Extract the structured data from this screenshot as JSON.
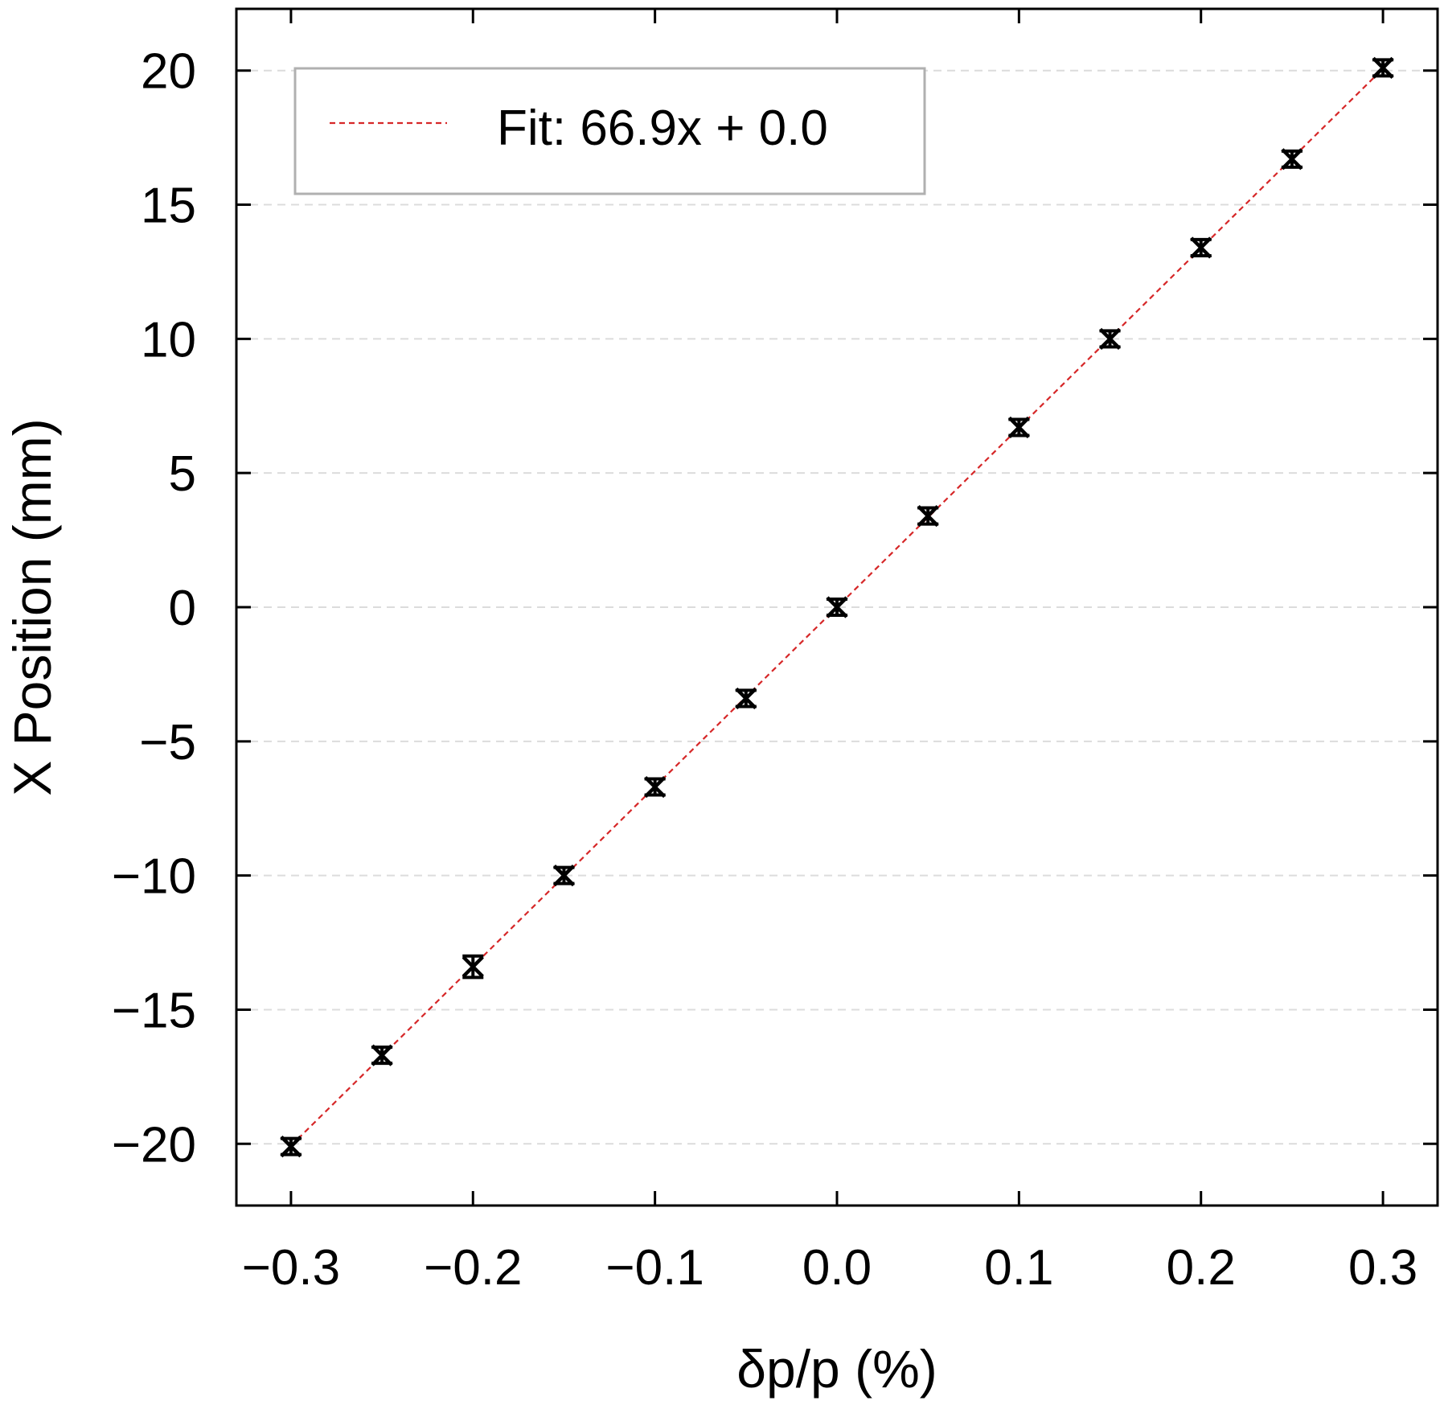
{
  "chart_data": {
    "type": "scatter",
    "xlabel": "δp/p (%)",
    "ylabel": "X Position (mm)",
    "xlim": [
      -0.33,
      0.33
    ],
    "ylim": [
      -22.3,
      22.3
    ],
    "x_ticks": [
      -0.3,
      -0.2,
      -0.1,
      0.0,
      0.1,
      0.2,
      0.3
    ],
    "x_tick_labels": [
      "−0.3",
      "−0.2",
      "−0.1",
      "0.0",
      "0.1",
      "0.2",
      "0.3"
    ],
    "y_ticks": [
      -20,
      -15,
      -10,
      -5,
      0,
      5,
      10,
      15,
      20
    ],
    "y_tick_labels": [
      "−20",
      "−15",
      "−10",
      "−5",
      "0",
      "5",
      "10",
      "15",
      "20"
    ],
    "grid": "horizontal-dashed",
    "legend_position": "top-left",
    "series": [
      {
        "kind": "points",
        "marker": "x",
        "error_bars": true,
        "color": "#000000",
        "x": [
          -0.3,
          -0.25,
          -0.2,
          -0.15,
          -0.1,
          -0.05,
          0.0,
          0.05,
          0.1,
          0.15,
          0.2,
          0.25,
          0.3
        ],
        "y": [
          -20.1,
          -16.7,
          -13.4,
          -10.0,
          -6.7,
          -3.4,
          0.0,
          3.4,
          6.7,
          10.0,
          13.4,
          16.7,
          20.1
        ],
        "yerr": [
          0.3,
          0.3,
          0.4,
          0.3,
          0.3,
          0.3,
          0.3,
          0.3,
          0.3,
          0.3,
          0.3,
          0.3,
          0.3
        ]
      },
      {
        "kind": "fit-line",
        "name": "Fit: 66.9x + 0.0",
        "color": "#d62728",
        "line_style": "dashed",
        "slope": 66.9,
        "intercept": 0.0,
        "x_range": [
          -0.3,
          0.3
        ]
      }
    ]
  }
}
